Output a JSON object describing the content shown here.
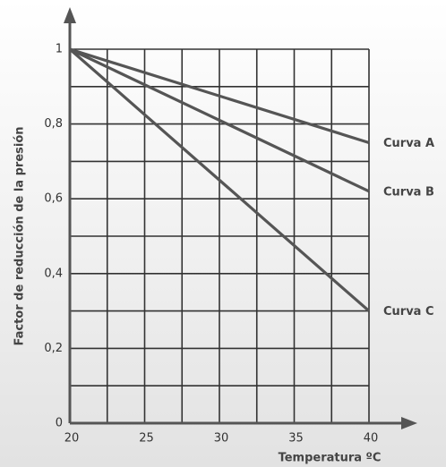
{
  "chart_data": {
    "type": "line",
    "x_label": "Temperatura ºC",
    "y_label": "Factor de reducción de la presión",
    "xlim": [
      20,
      40
    ],
    "ylim": [
      0,
      1
    ],
    "xticks": [
      20,
      25,
      30,
      35,
      40
    ],
    "yticks": [
      0,
      {
        "value": 0.2,
        "label": "0,2"
      },
      {
        "value": 0.4,
        "label": "0,4"
      },
      {
        "value": 0.6,
        "label": "0,6"
      },
      {
        "value": 0.8,
        "label": "0,8"
      },
      1
    ],
    "xgrid": [
      22.5,
      27.5,
      32.5,
      37.5
    ],
    "ygrid": [
      0.1,
      0.3,
      0.5,
      0.7,
      0.9
    ],
    "grid": true,
    "series": [
      {
        "name": "Curva A",
        "color": "#555555",
        "x": [
          20,
          40
        ],
        "values": [
          1,
          0.75
        ]
      },
      {
        "name": "Curva B",
        "color": "#555555",
        "x": [
          20,
          40
        ],
        "values": [
          1,
          0.62
        ]
      },
      {
        "name": "Curva C",
        "color": "#555555",
        "x": [
          20,
          40
        ],
        "values": [
          1,
          0.3
        ]
      }
    ]
  }
}
